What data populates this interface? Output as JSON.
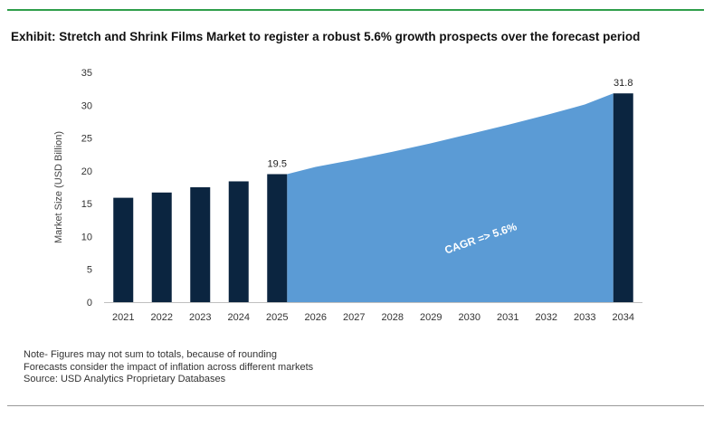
{
  "title": "Exhibit: Stretch and Shrink Films Market to register a robust 5.6% growth prospects over the forecast period",
  "notes": [
    "Note- Figures may not sum to totals, because of rounding",
    "Forecasts consider the impact of inflation across different markets",
    "Source: USD Analytics Proprietary Databases"
  ],
  "chart_data": {
    "type": "bar",
    "categories": [
      "2021",
      "2022",
      "2023",
      "2024",
      "2025",
      "2026",
      "2027",
      "2028",
      "2029",
      "2030",
      "2031",
      "2032",
      "2033",
      "2034"
    ],
    "values": [
      15.9,
      16.7,
      17.5,
      18.4,
      19.5,
      null,
      null,
      null,
      null,
      null,
      null,
      null,
      null,
      31.8
    ],
    "data_labels": {
      "2025": "19.5",
      "2034": "31.8"
    },
    "forecast_area": {
      "x": [
        "2025",
        "2026",
        "2027",
        "2028",
        "2029",
        "2030",
        "2031",
        "2032",
        "2033",
        "2034"
      ],
      "values": [
        19.5,
        20.6,
        21.7,
        22.9,
        24.2,
        25.6,
        27.0,
        28.5,
        30.1,
        31.8
      ],
      "label": "CAGR => 5.6%",
      "color": "#5b9bd5"
    },
    "ylabel": "Market Size (USD Billion)",
    "xlabel": "",
    "ylim": [
      0,
      35
    ],
    "yticks": [
      0,
      5,
      10,
      15,
      20,
      25,
      30,
      35
    ],
    "grid": false,
    "bar_color": "#0b2540",
    "axis_color": "#bfbfbf"
  }
}
